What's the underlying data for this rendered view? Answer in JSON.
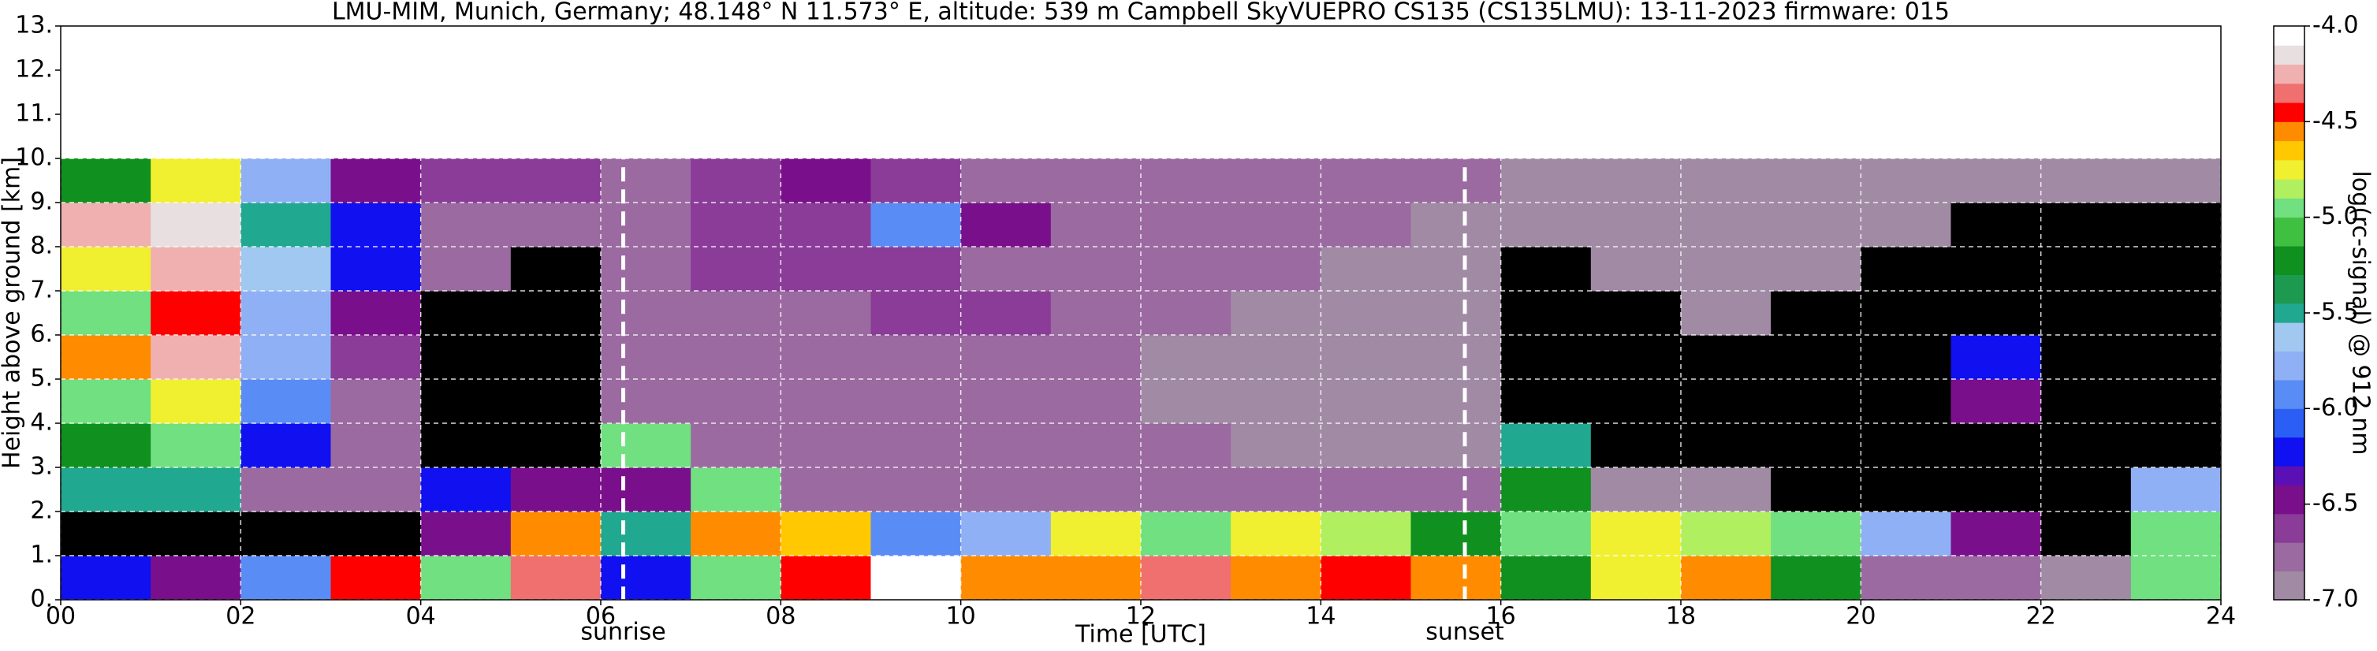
{
  "chart_data": {
    "type": "heatmap",
    "title": "LMU-MIM, Munich, Germany; 48.148° N 11.573° E, altitude: 539 m    Campbell SkyVUEPRO CS135 (CS135LMU): 13-11-2023    firmware: 015",
    "x_label": "Time [UTC]",
    "y_label": "Height above ground [km]",
    "colorbar_label": "log(rc-signal) @ 912 nm",
    "x_edges": [
      0,
      1,
      2,
      3,
      4,
      5,
      6,
      7,
      8,
      9,
      10,
      11,
      12,
      13,
      14,
      15,
      16,
      17,
      18,
      19,
      20,
      21,
      22,
      23,
      24
    ],
    "y_edges": [
      0,
      1,
      2,
      3,
      4,
      5,
      6,
      7,
      8,
      9,
      10,
      10.3
    ],
    "z": [
      [
        -6.2,
        -7.5,
        -5.5,
        -5.3,
        -5.0,
        -4.6,
        -5.0,
        -4.8,
        -4.3,
        -5.2
      ],
      [
        -6.5,
        -7.5,
        -5.5,
        -5.0,
        -4.8,
        -4.3,
        -4.5,
        -4.3,
        -4.2,
        -4.8
      ],
      [
        -6.0,
        -7.5,
        -6.8,
        -6.2,
        -6.0,
        -5.8,
        -5.8,
        -5.6,
        -5.5,
        -5.8
      ],
      [
        -4.5,
        -7.5,
        -6.8,
        -6.8,
        -6.8,
        -6.6,
        -6.5,
        -6.2,
        -6.3,
        -6.5
      ],
      [
        -5.0,
        -6.5,
        -6.3,
        -7.5,
        -7.5,
        -7.5,
        -7.5,
        -6.8,
        -6.8,
        -6.6
      ],
      [
        -4.4,
        -4.6,
        -6.5,
        -7.5,
        -7.5,
        -7.5,
        -7.5,
        -7.5,
        -6.8,
        -6.6
      ],
      [
        -6.3,
        -5.5,
        -6.5,
        -5.0,
        -6.8,
        -6.8,
        -6.8,
        -6.8,
        -6.8,
        -6.8
      ],
      [
        -5.0,
        -4.6,
        -5.0,
        -6.8,
        -6.8,
        -6.8,
        -6.8,
        -6.7,
        -6.7,
        -6.7
      ],
      [
        -4.5,
        -4.7,
        -6.8,
        -6.8,
        -6.8,
        -6.8,
        -6.8,
        -6.7,
        -6.7,
        -6.5
      ],
      [
        -4.1,
        -6.0,
        -6.8,
        -6.8,
        -6.8,
        -6.8,
        -6.6,
        -6.7,
        -6.0,
        -6.6
      ],
      [
        -4.6,
        -5.8,
        -6.8,
        -6.8,
        -6.8,
        -6.8,
        -6.7,
        -6.8,
        -6.5,
        -6.8
      ],
      [
        -4.6,
        -4.8,
        -6.8,
        -6.8,
        -6.8,
        -6.8,
        -6.8,
        -6.8,
        -6.8,
        -6.8
      ],
      [
        -4.4,
        -5.0,
        -6.8,
        -6.8,
        -6.9,
        -6.9,
        -6.8,
        -6.8,
        -6.8,
        -6.8
      ],
      [
        -4.6,
        -4.8,
        -6.8,
        -6.9,
        -6.9,
        -6.9,
        -6.9,
        -6.8,
        -6.8,
        -6.8
      ],
      [
        -4.5,
        -4.9,
        -6.8,
        -6.9,
        -6.9,
        -6.9,
        -6.9,
        -6.9,
        -6.8,
        -6.8
      ],
      [
        -4.6,
        -5.2,
        -6.8,
        -6.9,
        -6.9,
        -6.9,
        -6.9,
        -6.9,
        -6.9,
        -6.8
      ],
      [
        -5.3,
        -5.0,
        -5.2,
        -5.5,
        -7.5,
        -7.5,
        -7.5,
        -7.5,
        -6.9,
        -6.9
      ],
      [
        -4.8,
        -4.8,
        -6.9,
        -7.5,
        -7.5,
        -7.5,
        -7.5,
        -6.9,
        -6.9,
        -6.9
      ],
      [
        -4.6,
        -4.9,
        -6.9,
        -7.5,
        -7.5,
        -7.5,
        -6.9,
        -6.9,
        -6.9,
        -6.9
      ],
      [
        -5.2,
        -5.0,
        -7.5,
        -7.5,
        -7.5,
        -7.5,
        -7.5,
        -6.9,
        -6.9,
        -6.9
      ],
      [
        -6.8,
        -5.8,
        -7.5,
        -7.5,
        -7.5,
        -7.5,
        -7.5,
        -7.5,
        -6.9,
        -6.9
      ],
      [
        -6.8,
        -6.5,
        -7.5,
        -7.5,
        -6.5,
        -6.2,
        -7.5,
        -7.5,
        -7.5,
        -6.9
      ],
      [
        -6.9,
        -7.5,
        -7.5,
        -7.5,
        -7.5,
        -7.5,
        -7.5,
        -7.5,
        -7.5,
        -6.9
      ],
      [
        -5.0,
        -5.0,
        -5.8,
        -7.5,
        -7.5,
        -7.5,
        -7.5,
        -7.5,
        -7.5,
        -6.9
      ]
    ],
    "xlim": [
      0,
      24
    ],
    "ylim": [
      0,
      13
    ],
    "xticks": [
      {
        "value": 0,
        "label": "00"
      },
      {
        "value": 2,
        "label": "02"
      },
      {
        "value": 4,
        "label": "04"
      },
      {
        "value": 6,
        "label": "06"
      },
      {
        "value": 8,
        "label": "08"
      },
      10,
      12,
      14,
      16,
      18,
      20,
      22,
      24
    ],
    "yticks": [
      {
        "value": 0,
        "label": "0."
      },
      {
        "value": 1,
        "label": "1."
      },
      {
        "value": 2,
        "label": "2."
      },
      {
        "value": 3,
        "label": "3."
      },
      {
        "value": 4,
        "label": "4."
      },
      {
        "value": 5,
        "label": "5."
      },
      {
        "value": 6,
        "label": "6."
      },
      {
        "value": 7,
        "label": "7."
      },
      {
        "value": 8,
        "label": "8."
      },
      {
        "value": 9,
        "label": "9."
      },
      {
        "value": 10,
        "label": "10."
      },
      {
        "value": 11,
        "label": "11."
      },
      {
        "value": 12,
        "label": "12."
      },
      {
        "value": 13,
        "label": "13."
      }
    ],
    "zlim": [
      -7,
      -4
    ],
    "zticks": [
      {
        "value": -7,
        "label": "-7.0"
      },
      {
        "value": -6.5,
        "label": "-6.5"
      },
      {
        "value": -6,
        "label": "-6.0"
      },
      {
        "value": -5.5,
        "label": "-5.5"
      },
      {
        "value": -5,
        "label": "-5.0"
      },
      {
        "value": -4.5,
        "label": "-4.5"
      },
      {
        "value": -4,
        "label": "-4.0"
      }
    ],
    "under_color": "#000000",
    "colorscale": [
      {
        "value": -7.0,
        "color": "#a08aa4"
      },
      {
        "value": -6.85,
        "color": "#9a6aa0"
      },
      {
        "value": -6.7,
        "color": "#8a3c98"
      },
      {
        "value": -6.55,
        "color": "#7a0f8c"
      },
      {
        "value": -6.4,
        "color": "#5a10b4"
      },
      {
        "value": -6.3,
        "color": "#1010f0"
      },
      {
        "value": -6.15,
        "color": "#2a5ef5"
      },
      {
        "value": -6.0,
        "color": "#5a8cf5"
      },
      {
        "value": -5.85,
        "color": "#90b0f5"
      },
      {
        "value": -5.7,
        "color": "#a0c8f0"
      },
      {
        "value": -5.55,
        "color": "#20a890"
      },
      {
        "value": -5.45,
        "color": "#1e9a50"
      },
      {
        "value": -5.3,
        "color": "#10901e"
      },
      {
        "value": -5.15,
        "color": "#40c040"
      },
      {
        "value": -5.0,
        "color": "#70e080"
      },
      {
        "value": -4.9,
        "color": "#b0f060"
      },
      {
        "value": -4.8,
        "color": "#f0f030"
      },
      {
        "value": -4.7,
        "color": "#ffc800"
      },
      {
        "value": -4.6,
        "color": "#ff8c00"
      },
      {
        "value": -4.5,
        "color": "#ff0000"
      },
      {
        "value": -4.4,
        "color": "#f07070"
      },
      {
        "value": -4.3,
        "color": "#f0b0b0"
      },
      {
        "value": -4.2,
        "color": "#e8e0e0"
      },
      {
        "value": -4.1,
        "color": "#ffffff"
      }
    ],
    "events": [
      {
        "x": 6.25,
        "label": "sunrise"
      },
      {
        "x": 15.6,
        "label": "sunset"
      }
    ],
    "grid": true
  }
}
